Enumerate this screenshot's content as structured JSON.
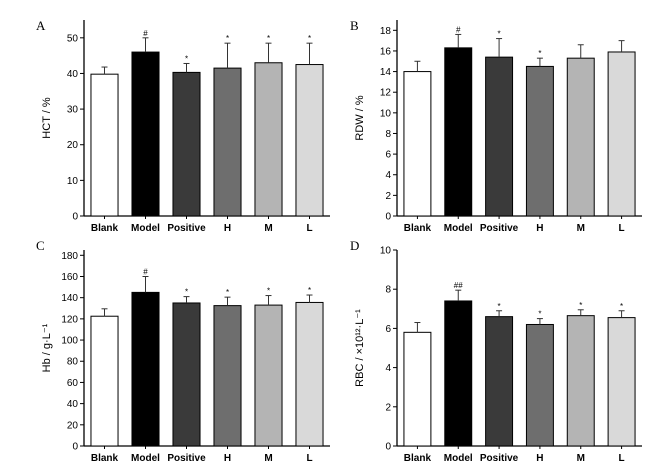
{
  "colors": {
    "bar_fills": [
      "#ffffff",
      "#000000",
      "#3a3a3a",
      "#6e6e6e",
      "#b4b4b4",
      "#d9d9d9"
    ],
    "axis": "#000000"
  },
  "chart_data": [
    {
      "type": "bar",
      "panel": "A",
      "ylabel": "HCT / %",
      "categories": [
        "Blank",
        "Model",
        "Positive",
        "H",
        "M",
        "L"
      ],
      "values": [
        39.8,
        46.0,
        40.3,
        41.5,
        43.0,
        42.5
      ],
      "errors": [
        2.0,
        4.0,
        2.5,
        7.0,
        5.5,
        6.0
      ],
      "significance": [
        "",
        "#",
        "*",
        "*",
        "*",
        "*"
      ],
      "ylim": [
        0,
        55
      ],
      "yticks": [
        0,
        10,
        20,
        30,
        40,
        50
      ]
    },
    {
      "type": "bar",
      "panel": "B",
      "ylabel": "RDW / %",
      "categories": [
        "Blank",
        "Model",
        "Positive",
        "H",
        "M",
        "L"
      ],
      "values": [
        14.0,
        16.3,
        15.4,
        14.5,
        15.3,
        15.9
      ],
      "errors": [
        1.0,
        1.3,
        1.8,
        0.8,
        1.3,
        1.1
      ],
      "significance": [
        "",
        "#",
        "*",
        "*",
        "",
        ""
      ],
      "ylim": [
        0,
        19
      ],
      "yticks": [
        0,
        2,
        4,
        6,
        8,
        10,
        12,
        14,
        16,
        18
      ]
    },
    {
      "type": "bar",
      "panel": "C",
      "ylabel": "Hb / g·L⁻¹",
      "categories": [
        "Blank",
        "Model",
        "Positive",
        "H",
        "M",
        "L"
      ],
      "values": [
        122.5,
        145.0,
        135.0,
        132.5,
        133.0,
        135.5
      ],
      "errors": [
        7.0,
        15.0,
        6.0,
        8.0,
        9.0,
        7.0
      ],
      "significance": [
        "",
        "#",
        "*",
        "*",
        "*",
        "*"
      ],
      "ylim": [
        0,
        185
      ],
      "yticks": [
        0,
        20,
        40,
        60,
        80,
        100,
        120,
        140,
        160,
        180
      ]
    },
    {
      "type": "bar",
      "panel": "D",
      "ylabel": "RBC / ×10¹²·L⁻¹",
      "categories": [
        "Blank",
        "Model",
        "Positive",
        "H",
        "M",
        "L"
      ],
      "values": [
        5.8,
        7.4,
        6.6,
        6.2,
        6.65,
        6.55
      ],
      "errors": [
        0.5,
        0.55,
        0.3,
        0.3,
        0.3,
        0.35
      ],
      "significance": [
        "",
        "##",
        "*",
        "*",
        "*",
        "*"
      ],
      "ylim": [
        0,
        10
      ],
      "yticks": [
        0,
        2,
        4,
        6,
        8,
        10
      ]
    }
  ]
}
